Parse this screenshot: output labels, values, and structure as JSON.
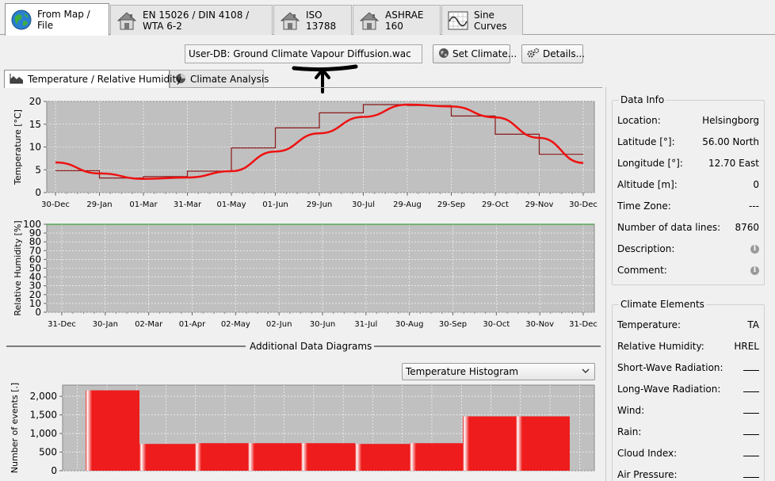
{
  "top_tabs": [
    {
      "label": "From Map / File",
      "icon": "globe-icon",
      "active": true
    },
    {
      "label": "EN 15026 / DIN 4108 / WTA 6-2",
      "icon": "house-icon",
      "active": false
    },
    {
      "label": "ISO 13788",
      "icon": "house-icon",
      "active": false
    },
    {
      "label": "ASHRAE 160",
      "icon": "house-icon",
      "active": false
    },
    {
      "label": "Sine Curves",
      "icon": "sine-chart-icon",
      "active": false
    }
  ],
  "climate_file": "User-DB: Ground Climate Vapour Diffusion.wac",
  "buttons": {
    "set_climate": "Set Climate...",
    "details": "Details..."
  },
  "sub_tabs": [
    {
      "label": "Temperature / Relative Humidity",
      "icon": "area-chart-icon",
      "active": true
    },
    {
      "label": "Climate Analysis",
      "icon": "pie-chart-icon",
      "active": false
    }
  ],
  "data_info": {
    "title": "Data Info",
    "rows": [
      {
        "label": "Location:",
        "value": "Helsingborg"
      },
      {
        "label": "Latitude [°]:",
        "value": "56.00 North"
      },
      {
        "label": "Longitude [°]:",
        "value": "12.70 East"
      },
      {
        "label": "Altitude [m]:",
        "value": "0"
      },
      {
        "label": "Time Zone:",
        "value": "---"
      },
      {
        "label": "Number of data lines:",
        "value": "8760"
      },
      {
        "label": "Description:",
        "value": ""
      },
      {
        "label": "Comment:",
        "value": ""
      }
    ]
  },
  "climate_elements": {
    "title": "Climate Elements",
    "rows": [
      {
        "label": "Temperature:",
        "value": "TA"
      },
      {
        "label": "Relative Humidity:",
        "value": "HREL"
      },
      {
        "label": "Short-Wave Radiation:",
        "value": ""
      },
      {
        "label": "Long-Wave Radiation:",
        "value": ""
      },
      {
        "label": "Wind:",
        "value": ""
      },
      {
        "label": "Rain:",
        "value": ""
      },
      {
        "label": "Cloud Index:",
        "value": ""
      },
      {
        "label": "Air Pressure:",
        "value": ""
      }
    ]
  },
  "additional_section_title": "Additional Data Diagrams",
  "histogram_select": "Temperature Histogram",
  "chart_data": [
    {
      "type": "line",
      "ylabel": "Temperature [°C]",
      "ylim": [
        0,
        20
      ],
      "yticks": [
        "0",
        "5",
        "10",
        "15",
        "20"
      ],
      "xticks": [
        "30-Dec",
        "29-Jan",
        "01-Mar",
        "31-Mar",
        "01-May",
        "01-Jun",
        "29-Jun",
        "30-Jul",
        "29-Aug",
        "29-Sep",
        "29-Oct",
        "29-Nov",
        "30-Dec"
      ],
      "grid": true,
      "series": [
        {
          "values": [
            4.8,
            3.2,
            3.5,
            4.7,
            9.8,
            14.2,
            17.5,
            19.3,
            19.1,
            16.8,
            12.8,
            8.4,
            6.5
          ]
        },
        {
          "values": [
            6.6,
            4.2,
            3.0,
            3.3,
            4.7,
            9.0,
            13.0,
            16.6,
            19.3,
            18.9,
            16.5,
            12.0,
            6.5
          ]
        }
      ],
      "colors": [
        "#8b1a1a",
        "#ee1111"
      ]
    },
    {
      "type": "line",
      "ylabel": "Relative Humidity [%]",
      "ylim": [
        0,
        100
      ],
      "yticks": [
        "0",
        "10",
        "20",
        "30",
        "40",
        "50",
        "60",
        "70",
        "80",
        "90",
        "100"
      ],
      "xticks": [
        "31-Dec",
        "30-Jan",
        "02-Mar",
        "01-Apr",
        "02-May",
        "02-Jun",
        "30-Jun",
        "31-Jul",
        "30-Aug",
        "30-Sep",
        "30-Oct",
        "30-Nov",
        "31-Dec"
      ],
      "grid": true,
      "series": [
        {
          "values": [
            100,
            100
          ]
        }
      ],
      "colors": [
        "#3aa03a"
      ]
    },
    {
      "type": "bar",
      "ylabel": "Number of events [.]",
      "ylim": [
        0,
        2300
      ],
      "yticks": [
        "0",
        "500",
        "1,000",
        "1,500",
        "2,000"
      ],
      "values": [
        2160,
        720,
        740,
        740,
        740,
        0,
        720,
        740,
        1460,
        1460
      ],
      "grid": true,
      "colors": [
        "#ee1c1c"
      ]
    }
  ]
}
